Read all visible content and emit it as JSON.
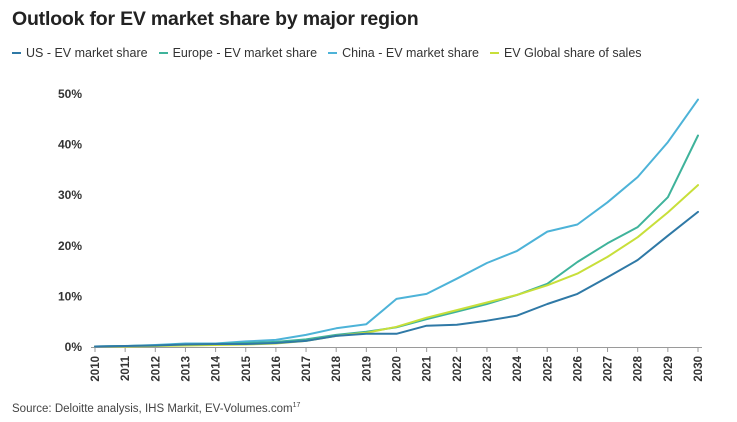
{
  "chart_data": {
    "type": "line",
    "title": "Outlook for EV market share by major region",
    "xlabel": "",
    "ylabel": "",
    "x": [
      "2010",
      "2011",
      "2012",
      "2013",
      "2014",
      "2015",
      "2016",
      "2017",
      "2018",
      "2019",
      "2020",
      "2021",
      "2022",
      "2023",
      "2024",
      "2025",
      "2026",
      "2027",
      "2028",
      "2029",
      "2030"
    ],
    "y_ticks": [
      "0%",
      "10%",
      "20%",
      "30%",
      "40%",
      "50%"
    ],
    "ylim": [
      0,
      50
    ],
    "grid": false,
    "legend_position": "top",
    "series": [
      {
        "name": "US - EV market share",
        "color": "#2f79a6",
        "values": [
          0.1,
          0.2,
          0.3,
          0.5,
          0.6,
          0.6,
          0.8,
          1.2,
          2.2,
          2.6,
          2.6,
          4.2,
          4.4,
          5.2,
          6.2,
          8.5,
          10.5,
          13.8,
          17.2,
          22.0,
          26.7
        ]
      },
      {
        "name": "Europe - EV market share",
        "color": "#3fb39b",
        "values": [
          0.1,
          0.2,
          0.3,
          0.5,
          0.6,
          0.8,
          1.0,
          1.5,
          2.4,
          3.0,
          3.9,
          5.5,
          7.0,
          8.5,
          10.3,
          12.5,
          16.8,
          20.5,
          23.7,
          29.6,
          41.8
        ]
      },
      {
        "name": "China - EV market share",
        "color": "#4db3d8",
        "values": [
          0.1,
          0.2,
          0.4,
          0.7,
          0.7,
          1.1,
          1.4,
          2.4,
          3.7,
          4.5,
          9.5,
          10.5,
          13.5,
          16.6,
          19.0,
          22.8,
          24.2,
          28.6,
          33.6,
          40.5,
          48.9
        ]
      },
      {
        "name": "EV Global share of sales",
        "color": "#c8df3a",
        "values": [
          0.1,
          0.1,
          0.2,
          0.3,
          0.4,
          0.5,
          0.7,
          1.2,
          2.2,
          2.8,
          4.0,
          5.8,
          7.3,
          8.8,
          10.3,
          12.2,
          14.5,
          17.8,
          21.7,
          26.6,
          32.0
        ]
      }
    ]
  },
  "source": {
    "text": "Source: Deloitte analysis, IHS Markit, EV-Volumes.com",
    "footnote": "17"
  }
}
